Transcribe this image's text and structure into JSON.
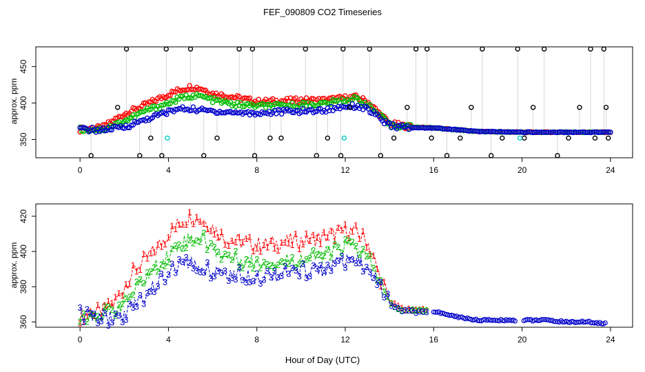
{
  "title": "FEF_090809  CO2 Timeseries",
  "colors": {
    "series1": "#ff0000",
    "series2": "#00bb00",
    "series3": "#0000cc",
    "spikes": "#000000",
    "flagged": "#00cccc",
    "connector": "#999999"
  },
  "chart_data": [
    {
      "type": "scatter",
      "panel": "top",
      "title": "",
      "xlabel": "",
      "ylabel": "approx. ppm",
      "xlim": [
        -2,
        25
      ],
      "ylim": [
        325,
        477
      ],
      "xticks": [
        0,
        4,
        8,
        12,
        16,
        20,
        24
      ],
      "yticks": [
        350,
        400,
        450
      ],
      "grid": false,
      "series": [
        {
          "name": "1",
          "color": "#ff0000",
          "x": [
            0,
            1,
            2,
            3,
            4,
            4.5,
            5,
            5.5,
            6,
            7,
            8,
            9,
            10,
            11,
            12,
            12.5,
            13,
            14,
            15,
            16,
            18,
            20,
            22,
            24
          ],
          "y": [
            364,
            366,
            385,
            398,
            412,
            418,
            422,
            420,
            413,
            408,
            402,
            403,
            404,
            404,
            407,
            408,
            402,
            372,
            367,
            366,
            361,
            360,
            360,
            360
          ]
        },
        {
          "name": "2",
          "color": "#00bb00",
          "x": [
            0,
            1,
            2,
            3,
            4,
            4.5,
            5,
            5.5,
            6,
            7,
            8,
            9,
            10,
            11,
            12,
            12.5,
            13,
            14,
            15,
            16,
            18,
            20,
            22,
            24
          ],
          "y": [
            364,
            364,
            375,
            390,
            400,
            406,
            410,
            409,
            404,
            398,
            396,
            396,
            398,
            399,
            404,
            406,
            398,
            370,
            367,
            366,
            361,
            360,
            360,
            360
          ]
        },
        {
          "name": "3",
          "color": "#0000cc",
          "x": [
            0,
            1,
            2,
            3,
            4,
            4.5,
            5,
            5.5,
            6,
            7,
            8,
            9,
            10,
            11,
            12,
            12.5,
            13,
            14,
            15,
            16,
            18,
            20,
            22,
            24
          ],
          "y": [
            364,
            363,
            367,
            378,
            388,
            392,
            392,
            390,
            389,
            387,
            386,
            388,
            389,
            390,
            396,
            396,
            392,
            369,
            366,
            366,
            361,
            360,
            360,
            360
          ]
        },
        {
          "name": "spikes",
          "color": "#000000",
          "x": [
            0.5,
            1.7,
            2.1,
            2.7,
            3.2,
            3.7,
            3.9,
            5.0,
            5.6,
            6.2,
            7.2,
            7.8,
            7.9,
            8.6,
            9.1,
            10.2,
            10.7,
            11.2,
            11.8,
            11.9,
            12.2,
            13.1,
            13.6,
            14.2,
            14.8,
            15.2,
            15.7,
            15.9,
            16.6,
            17.2,
            17.7,
            18.2,
            18.6,
            19.1,
            19.8,
            20.1,
            20.5,
            21.0,
            21.6,
            22.1,
            22.6,
            23.1,
            23.3,
            23.7,
            23.8,
            23.9
          ],
          "y": [
            328,
            394,
            474,
            328,
            352,
            328,
            474,
            474,
            328,
            352,
            474,
            474,
            328,
            352,
            352,
            474,
            328,
            352,
            328,
            474,
            394,
            474,
            328,
            352,
            394,
            474,
            474,
            352,
            328,
            352,
            394,
            474,
            328,
            352,
            474,
            352,
            394,
            474,
            328,
            352,
            394,
            474,
            352,
            474,
            394,
            352
          ]
        },
        {
          "name": "flagged",
          "color": "#00cccc",
          "x": [
            3.95,
            11.95,
            19.9
          ],
          "y": [
            352,
            352,
            352
          ]
        }
      ]
    },
    {
      "type": "line",
      "panel": "bottom",
      "title": "",
      "xlabel": "Hour of Day (UTC)",
      "ylabel": "approx. ppm",
      "xlim": [
        -2,
        25
      ],
      "ylim": [
        357,
        427
      ],
      "xticks": [
        0,
        4,
        8,
        12,
        16,
        20,
        24
      ],
      "yticks": [
        360,
        380,
        400,
        420
      ],
      "grid": false,
      "series": [
        {
          "name": "1",
          "color": "#ff0000",
          "x": [
            0,
            0.5,
            1,
            1.5,
            2,
            2.5,
            3,
            3.5,
            4,
            4.5,
            5,
            5.5,
            6,
            6.5,
            7,
            7.5,
            8,
            8.5,
            9,
            9.5,
            10,
            10.5,
            11,
            11.5,
            12,
            12.5,
            13,
            13.5,
            14,
            14.5,
            15,
            15.7
          ],
          "y": [
            364,
            365,
            366,
            370,
            380,
            390,
            396,
            402,
            410,
            416,
            420,
            418,
            414,
            408,
            406,
            405,
            404,
            404,
            405,
            406,
            406,
            407,
            408,
            410,
            412,
            411,
            406,
            388,
            372,
            368,
            367,
            367
          ]
        },
        {
          "name": "2",
          "color": "#00bb00",
          "x": [
            0,
            0.5,
            1,
            1.5,
            2,
            2.5,
            3,
            3.5,
            4,
            4.5,
            5,
            5.5,
            6,
            6.5,
            7,
            7.5,
            8,
            8.5,
            9,
            9.5,
            10,
            10.5,
            11,
            11.5,
            12,
            12.5,
            13,
            13.5,
            14,
            14.5,
            15,
            15.7
          ],
          "y": [
            364,
            364,
            364,
            366,
            372,
            378,
            385,
            392,
            398,
            404,
            408,
            408,
            402,
            398,
            396,
            395,
            394,
            394,
            394,
            395,
            396,
            397,
            398,
            400,
            404,
            402,
            396,
            385,
            371,
            367,
            367,
            367
          ]
        },
        {
          "name": "3",
          "color": "#0000cc",
          "x": [
            0,
            0.5,
            1,
            1.5,
            2,
            2.5,
            3,
            3.5,
            4,
            4.5,
            5,
            5.5,
            6,
            6.5,
            7,
            7.5,
            8,
            8.5,
            9,
            9.5,
            10,
            10.5,
            11,
            11.5,
            12,
            12.5,
            13,
            13.5,
            14,
            14.5,
            15,
            15.7
          ],
          "y": [
            364,
            363,
            363,
            362,
            364,
            370,
            376,
            382,
            388,
            392,
            393,
            391,
            389,
            388,
            387,
            387,
            386,
            387,
            388,
            388,
            389,
            390,
            390,
            392,
            394,
            394,
            390,
            382,
            370,
            367,
            366,
            366
          ]
        },
        {
          "name": "tail",
          "color": "#0000cc",
          "x": [
            16,
            17,
            18,
            19,
            19.7,
            20.1,
            21,
            22,
            23,
            23.8
          ],
          "y": [
            366,
            363,
            361,
            361,
            361,
            361,
            361,
            360,
            360,
            359
          ]
        }
      ]
    }
  ]
}
